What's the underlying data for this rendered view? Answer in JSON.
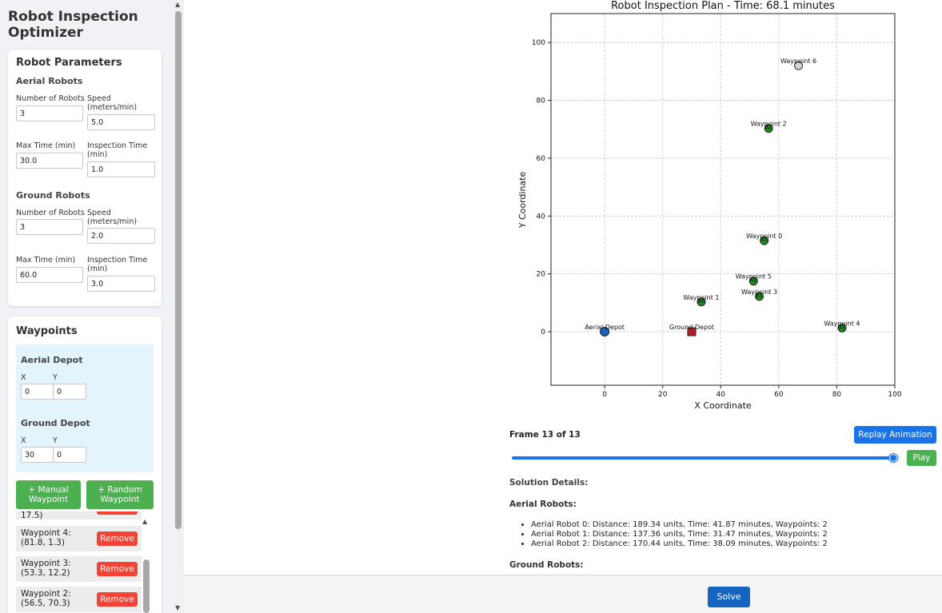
{
  "sidebar": {
    "app_title": "Robot Inspection Optimizer",
    "robot_params": {
      "title": "Robot Parameters",
      "aerial": {
        "title": "Aerial Robots",
        "num_label": "Number of Robots",
        "num_value": "3",
        "speed_label": "Speed (meters/min)",
        "speed_value": "5.0",
        "max_time_label": "Max Time (min)",
        "max_time_value": "30.0",
        "insp_label": "Inspection Time (min)",
        "insp_value": "1.0"
      },
      "ground": {
        "title": "Ground Robots",
        "num_label": "Number of Robots",
        "num_value": "3",
        "speed_label": "Speed (meters/min)",
        "speed_value": "2.0",
        "max_time_label": "Max Time (min)",
        "max_time_value": "60.0",
        "insp_label": "Inspection Time (min)",
        "insp_value": "3.0"
      }
    },
    "waypoints": {
      "title": "Waypoints",
      "aerial_depot": {
        "title": "Aerial Depot",
        "x_label": "X",
        "y_label": "Y",
        "x_value": "0",
        "y_value": "0"
      },
      "ground_depot": {
        "title": "Ground Depot",
        "x_label": "X",
        "y_label": "Y",
        "x_value": "30",
        "y_value": "0"
      },
      "manual_btn": "+ Manual Waypoint",
      "random_btn": "+ Random Waypoint",
      "remove_label": "Remove",
      "partial_text": "17.5)",
      "items": [
        {
          "text": "Waypoint 4: (81.8, 1.3)"
        },
        {
          "text": "Waypoint 3: (53.3, 12.2)"
        },
        {
          "text": "Waypoint 2: (56.5, 70.3)"
        }
      ]
    }
  },
  "main": {
    "frame_label": "Frame 13 of 13",
    "replay_btn": "Replay Animation",
    "play_btn": "Play",
    "slider": {
      "value": 13,
      "max": 13
    },
    "solution_title": "Solution Details:",
    "aerial_title": "Aerial Robots:",
    "aerial_lines": [
      "Aerial Robot 0: Distance: 189.34 units, Time: 41.87 minutes, Waypoints: 2",
      "Aerial Robot 1: Distance: 137.36 units, Time: 31.47 minutes, Waypoints: 2",
      "Aerial Robot 2: Distance: 170.44 units, Time: 38.09 minutes, Waypoints: 2"
    ],
    "ground_title": "Ground Robots:",
    "solve_btn": "Solve"
  },
  "chart_data": {
    "type": "scatter",
    "title": "Robot Inspection Plan - Time: 68.1 minutes",
    "xlabel": "X Coordinate",
    "ylabel": "Y Coordinate",
    "xlim": [
      -18.5,
      100
    ],
    "ylim": [
      -18.5,
      110
    ],
    "xticks": [
      0,
      20,
      40,
      60,
      80,
      100
    ],
    "yticks": [
      0,
      20,
      40,
      60,
      80,
      100
    ],
    "grid": true,
    "colors": {
      "visited": "#228b22",
      "unvisited": "#d3d3d3",
      "aerial_depot": "#1f5fbf",
      "ground_depot": "#b22222"
    },
    "depots": [
      {
        "name": "Aerial Depot",
        "x": 0,
        "y": 0,
        "marker": "circle",
        "color": "#1f5fbf"
      },
      {
        "name": "Ground Depot",
        "x": 30,
        "y": 0,
        "marker": "square",
        "color": "#b22222"
      }
    ],
    "waypoints": [
      {
        "name": "Waypoint 0",
        "x": 55,
        "y": 31.5,
        "visited": true,
        "tag": "A1"
      },
      {
        "name": "Waypoint 1",
        "x": 33.3,
        "y": 10.3,
        "visited": true,
        "tag": "A0"
      },
      {
        "name": "Waypoint 2",
        "x": 56.5,
        "y": 70.3,
        "visited": true,
        "tag": "A2"
      },
      {
        "name": "Waypoint 3",
        "x": 53.3,
        "y": 12.2,
        "visited": true,
        "tag": "A1"
      },
      {
        "name": "Waypoint 4",
        "x": 81.8,
        "y": 1.3,
        "visited": true,
        "tag": "A0"
      },
      {
        "name": "Waypoint 5",
        "x": 51.3,
        "y": 17.5,
        "visited": true,
        "tag": "A2"
      },
      {
        "name": "Waypoint 6",
        "x": 66.8,
        "y": 92,
        "visited": false,
        "tag": ""
      }
    ]
  }
}
